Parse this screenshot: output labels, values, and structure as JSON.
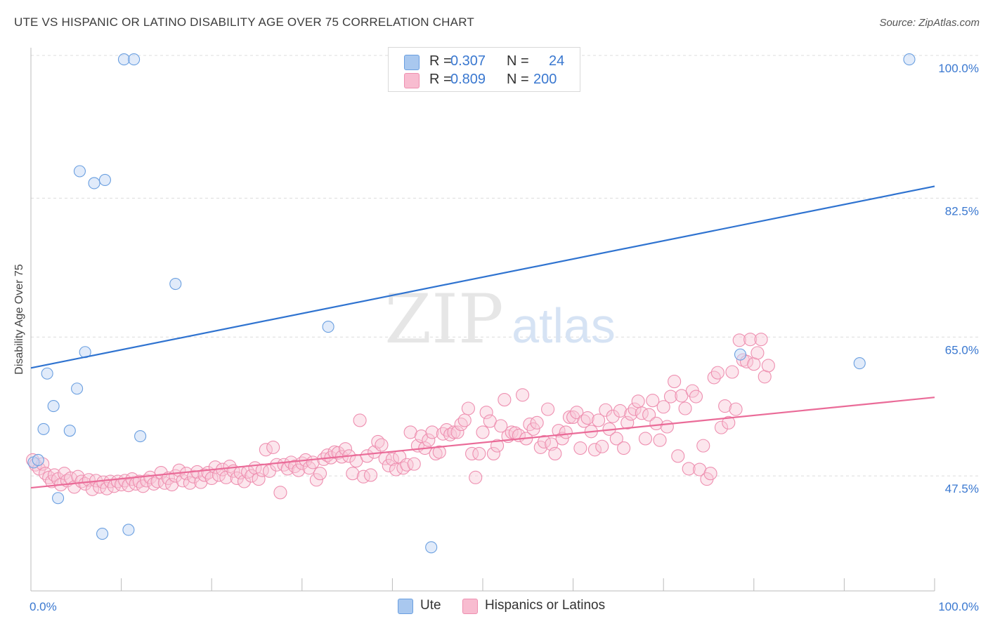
{
  "title": "UTE VS HISPANIC OR LATINO DISABILITY AGE OVER 75 CORRELATION CHART",
  "source": "Source: ZipAtlas.com",
  "watermark": {
    "zip": "ZIP",
    "atlas": "atlas"
  },
  "legend": {
    "r_label": "R =",
    "n_label": "N =",
    "rows": [
      {
        "r": "0.307",
        "n": "24",
        "color": "#a9c8ef",
        "stroke": "#6a9fe0"
      },
      {
        "r": "0.809",
        "n": "200",
        "color": "#f8bcd0",
        "stroke": "#ee8fb0"
      }
    ]
  },
  "bottom_legend": [
    "Ute",
    "Hispanics or Latinos"
  ],
  "colors": {
    "ute": "#6a9fe0",
    "ute_fill": "#c3d8f5",
    "hisp": "#ee8fb0",
    "hisp_fill": "#f9c8d8",
    "ute_line": "#2f73d0",
    "hisp_line": "#ea6b98",
    "tick_label": "#3a78d0"
  },
  "chart_data": {
    "type": "scatter",
    "xlabel": "",
    "ylabel": "Disability Age Over 75",
    "xlim": [
      0,
      100
    ],
    "ylim": [
      33.0,
      102.0
    ],
    "x_tick_labels": [
      "0.0%",
      "100.0%"
    ],
    "y_ticks": [
      47.5,
      65.0,
      82.5,
      100.0
    ],
    "y_tick_labels": [
      "47.5%",
      "65.0%",
      "82.5%",
      "100.0%"
    ],
    "grid": true,
    "series": [
      {
        "name": "Ute",
        "trend": {
          "x": [
            0,
            100
          ],
          "y": [
            61.1,
            84.0
          ]
        },
        "points": [
          [
            0.3,
            49.2
          ],
          [
            0.8,
            49.5
          ],
          [
            1.8,
            60.4
          ],
          [
            2.5,
            56.3
          ],
          [
            1.4,
            53.4
          ],
          [
            3.0,
            44.7
          ],
          [
            4.3,
            53.2
          ],
          [
            5.1,
            58.5
          ],
          [
            5.4,
            85.9
          ],
          [
            6.0,
            63.1
          ],
          [
            7.0,
            84.4
          ],
          [
            8.2,
            84.8
          ],
          [
            7.9,
            40.2
          ],
          [
            10.3,
            100.0
          ],
          [
            11.4,
            100.0
          ],
          [
            10.8,
            40.7
          ],
          [
            12.1,
            52.5
          ],
          [
            16.0,
            71.7
          ],
          [
            32.9,
            66.3
          ],
          [
            44.3,
            38.5
          ],
          [
            59.8,
            100.0
          ],
          [
            91.7,
            61.7
          ],
          [
            97.2,
            100.0
          ],
          [
            78.5,
            62.8
          ]
        ]
      },
      {
        "name": "Hispanics or Latinos",
        "trend": {
          "x": [
            0,
            100
          ],
          "y": [
            46.0,
            57.4
          ]
        },
        "points": [
          [
            0.2,
            49.5
          ],
          [
            0.5,
            48.9
          ],
          [
            0.9,
            48.4
          ],
          [
            1.3,
            49.0
          ],
          [
            1.6,
            47.8
          ],
          [
            2.0,
            47.3
          ],
          [
            2.3,
            46.8
          ],
          [
            2.6,
            47.6
          ],
          [
            3.0,
            47.1
          ],
          [
            3.3,
            46.4
          ],
          [
            3.7,
            47.8
          ],
          [
            4.0,
            46.9
          ],
          [
            4.4,
            47.2
          ],
          [
            4.8,
            46.1
          ],
          [
            5.2,
            47.4
          ],
          [
            5.6,
            46.8
          ],
          [
            6.0,
            46.5
          ],
          [
            6.4,
            47.0
          ],
          [
            6.8,
            45.8
          ],
          [
            7.2,
            46.9
          ],
          [
            7.6,
            46.1
          ],
          [
            8.0,
            46.7
          ],
          [
            8.4,
            45.9
          ],
          [
            8.8,
            46.8
          ],
          [
            9.2,
            46.2
          ],
          [
            9.6,
            46.8
          ],
          [
            10.0,
            46.4
          ],
          [
            10.4,
            46.9
          ],
          [
            10.8,
            46.3
          ],
          [
            11.2,
            47.1
          ],
          [
            11.6,
            46.5
          ],
          [
            12.0,
            46.8
          ],
          [
            12.4,
            46.2
          ],
          [
            12.8,
            46.9
          ],
          [
            13.2,
            47.3
          ],
          [
            13.6,
            46.5
          ],
          [
            14.0,
            46.8
          ],
          [
            14.4,
            47.9
          ],
          [
            14.8,
            46.6
          ],
          [
            15.2,
            47.2
          ],
          [
            15.6,
            46.4
          ],
          [
            16.0,
            47.5
          ],
          [
            16.4,
            48.2
          ],
          [
            16.8,
            46.9
          ],
          [
            17.2,
            47.8
          ],
          [
            17.6,
            46.6
          ],
          [
            18.0,
            47.4
          ],
          [
            18.4,
            48.0
          ],
          [
            18.8,
            46.7
          ],
          [
            19.2,
            47.6
          ],
          [
            19.6,
            47.9
          ],
          [
            20.0,
            47.2
          ],
          [
            20.4,
            48.6
          ],
          [
            20.8,
            47.6
          ],
          [
            21.2,
            48.3
          ],
          [
            21.6,
            47.3
          ],
          [
            22.0,
            48.7
          ],
          [
            22.4,
            48.1
          ],
          [
            22.8,
            47.2
          ],
          [
            23.2,
            47.9
          ],
          [
            23.6,
            46.8
          ],
          [
            24.0,
            48.0
          ],
          [
            24.4,
            47.5
          ],
          [
            24.8,
            48.5
          ],
          [
            25.2,
            47.1
          ],
          [
            25.6,
            48.2
          ],
          [
            26.0,
            50.8
          ],
          [
            26.4,
            48.1
          ],
          [
            26.8,
            51.1
          ],
          [
            27.2,
            48.9
          ],
          [
            27.6,
            45.4
          ],
          [
            28.0,
            48.9
          ],
          [
            28.4,
            48.4
          ],
          [
            28.8,
            49.2
          ],
          [
            29.2,
            48.7
          ],
          [
            29.6,
            48.2
          ],
          [
            30.0,
            49.1
          ],
          [
            30.4,
            49.5
          ],
          [
            30.8,
            48.5
          ],
          [
            31.2,
            49.2
          ],
          [
            31.6,
            47.0
          ],
          [
            32.0,
            47.8
          ],
          [
            32.4,
            49.6
          ],
          [
            32.8,
            50.1
          ],
          [
            33.2,
            49.8
          ],
          [
            33.6,
            50.5
          ],
          [
            34.0,
            50.4
          ],
          [
            34.4,
            49.9
          ],
          [
            34.8,
            50.9
          ],
          [
            35.2,
            50.0
          ],
          [
            35.6,
            47.8
          ],
          [
            36.0,
            49.4
          ],
          [
            36.4,
            54.5
          ],
          [
            36.8,
            47.4
          ],
          [
            37.2,
            50.0
          ],
          [
            37.6,
            47.6
          ],
          [
            38.0,
            50.5
          ],
          [
            38.4,
            51.8
          ],
          [
            38.8,
            51.4
          ],
          [
            39.2,
            49.7
          ],
          [
            39.6,
            48.8
          ],
          [
            40.0,
            49.6
          ],
          [
            40.4,
            48.3
          ],
          [
            40.8,
            49.9
          ],
          [
            41.2,
            48.5
          ],
          [
            41.6,
            48.9
          ],
          [
            42.0,
            53.0
          ],
          [
            42.4,
            49.0
          ],
          [
            42.8,
            51.3
          ],
          [
            43.2,
            52.5
          ],
          [
            43.6,
            51.0
          ],
          [
            44.0,
            52.0
          ],
          [
            44.4,
            53.0
          ],
          [
            44.8,
            50.3
          ],
          [
            45.2,
            50.5
          ],
          [
            45.6,
            52.8
          ],
          [
            46.0,
            53.3
          ],
          [
            46.4,
            52.7
          ],
          [
            46.8,
            53.0
          ],
          [
            47.2,
            53.0
          ],
          [
            47.6,
            54.0
          ],
          [
            48.0,
            54.5
          ],
          [
            48.4,
            56.0
          ],
          [
            48.8,
            50.3
          ],
          [
            49.2,
            47.3
          ],
          [
            49.6,
            50.3
          ],
          [
            50.0,
            53.0
          ],
          [
            50.4,
            55.5
          ],
          [
            50.8,
            54.4
          ],
          [
            51.2,
            50.3
          ],
          [
            51.6,
            51.3
          ],
          [
            52.0,
            53.8
          ],
          [
            52.4,
            57.1
          ],
          [
            52.8,
            52.5
          ],
          [
            53.2,
            53.0
          ],
          [
            53.6,
            52.9
          ],
          [
            54.0,
            52.6
          ],
          [
            54.4,
            57.7
          ],
          [
            54.8,
            52.2
          ],
          [
            55.2,
            54.0
          ],
          [
            55.6,
            53.4
          ],
          [
            56.0,
            54.2
          ],
          [
            56.4,
            51.1
          ],
          [
            56.8,
            51.8
          ],
          [
            57.2,
            55.9
          ],
          [
            57.6,
            51.5
          ],
          [
            58.0,
            50.3
          ],
          [
            58.4,
            53.2
          ],
          [
            58.8,
            52.2
          ],
          [
            59.2,
            53.0
          ],
          [
            59.6,
            54.9
          ],
          [
            60.0,
            54.9
          ],
          [
            60.4,
            55.5
          ],
          [
            60.8,
            51.0
          ],
          [
            61.2,
            54.4
          ],
          [
            61.6,
            54.8
          ],
          [
            62.0,
            53.1
          ],
          [
            62.4,
            50.8
          ],
          [
            62.8,
            54.5
          ],
          [
            63.2,
            51.2
          ],
          [
            63.6,
            55.8
          ],
          [
            64.0,
            53.4
          ],
          [
            64.4,
            55.0
          ],
          [
            64.8,
            52.2
          ],
          [
            65.2,
            55.7
          ],
          [
            65.6,
            51.0
          ],
          [
            66.0,
            54.2
          ],
          [
            66.4,
            55.3
          ],
          [
            66.8,
            55.9
          ],
          [
            67.2,
            56.9
          ],
          [
            67.6,
            55.4
          ],
          [
            68.0,
            52.2
          ],
          [
            68.4,
            55.2
          ],
          [
            68.8,
            57.0
          ],
          [
            69.2,
            54.1
          ],
          [
            69.6,
            52.0
          ],
          [
            70.0,
            56.2
          ],
          [
            70.4,
            53.7
          ],
          [
            70.8,
            57.5
          ],
          [
            71.2,
            59.4
          ],
          [
            71.6,
            50.0
          ],
          [
            72.0,
            57.6
          ],
          [
            72.4,
            56.0
          ],
          [
            72.8,
            48.4
          ],
          [
            73.2,
            58.2
          ],
          [
            73.6,
            57.5
          ],
          [
            74.0,
            48.3
          ],
          [
            74.4,
            51.3
          ],
          [
            74.8,
            47.1
          ],
          [
            75.2,
            47.8
          ],
          [
            75.6,
            59.9
          ],
          [
            76.0,
            60.5
          ],
          [
            76.4,
            53.6
          ],
          [
            76.8,
            56.3
          ],
          [
            77.2,
            54.2
          ],
          [
            77.6,
            60.6
          ],
          [
            78.0,
            55.9
          ],
          [
            78.4,
            64.6
          ],
          [
            78.8,
            62.1
          ],
          [
            79.2,
            61.9
          ],
          [
            79.6,
            64.7
          ],
          [
            80.0,
            61.6
          ],
          [
            80.4,
            63.0
          ],
          [
            80.8,
            64.7
          ],
          [
            81.2,
            60.0
          ],
          [
            81.6,
            61.4
          ]
        ]
      }
    ]
  }
}
